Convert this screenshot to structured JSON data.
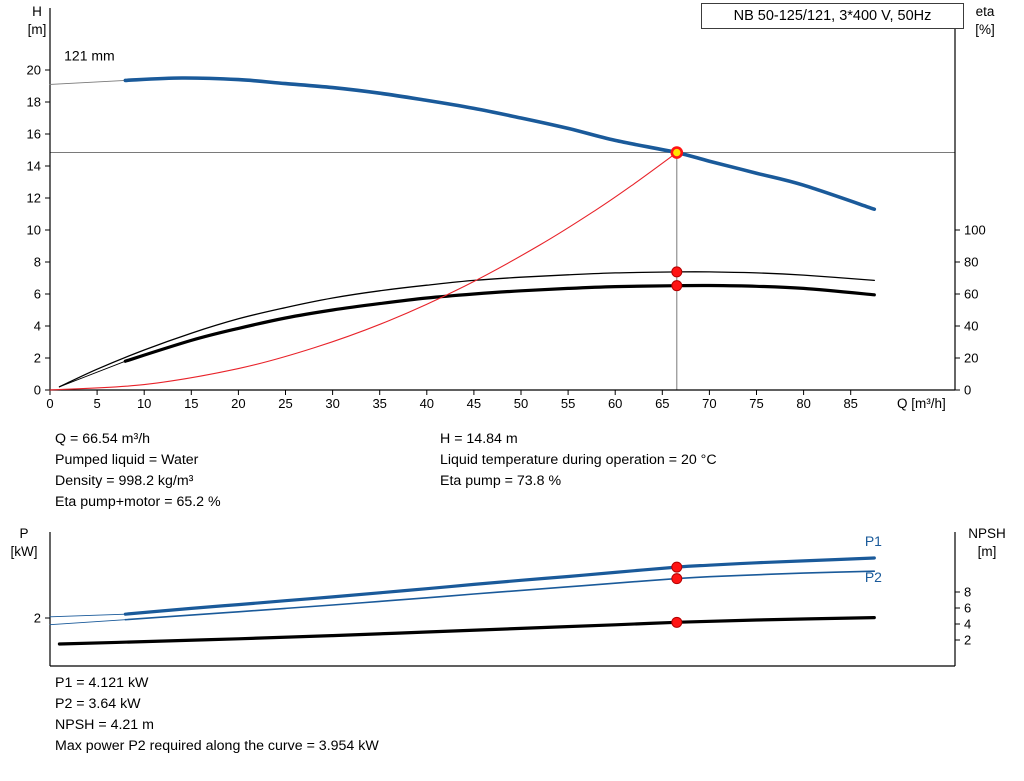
{
  "header": {
    "model": "NB 50-125/121, 3*400 V, 50Hz"
  },
  "info": {
    "top_left": [
      "Q = 66.54 m³/h",
      "Pumped liquid = Water",
      "Density = 998.2 kg/m³",
      "Eta pump+motor = 65.2 %"
    ],
    "top_right": [
      "H = 14.84 m",
      "Liquid temperature during operation = 20 °C",
      "Eta pump = 73.8 %"
    ],
    "bottom": [
      "P1 = 4.121 kW",
      "P2 = 3.64 kW",
      "NPSH = 4.21 m",
      "Max power P2 required along the curve = 3.954 kW"
    ]
  },
  "colors": {
    "curve_blue": "#1a5a9a",
    "curve_black": "#000000",
    "curve_red": "#e8232a",
    "marker_red": "#ff1414",
    "marker_red_edge": "#b40000",
    "marker_yellow": "#ffe400",
    "guide_gray": "#7a7a7a",
    "axis_black": "#000000"
  },
  "chart_data": [
    {
      "type": "line",
      "name": "qh-eta-chart",
      "x_axis": {
        "label": "Q [m³/h]",
        "min": 0,
        "max": 96,
        "ticks": [
          0,
          5,
          10,
          15,
          20,
          25,
          30,
          35,
          40,
          45,
          50,
          55,
          60,
          65,
          70,
          75,
          80,
          85
        ]
      },
      "y_left": {
        "label_lines": [
          "H",
          "[m]"
        ],
        "min": 0,
        "max": 20,
        "ticks": [
          0,
          2,
          4,
          6,
          8,
          10,
          12,
          14,
          16,
          18,
          20
        ]
      },
      "y_right": {
        "label_lines": [
          "eta",
          "[%]"
        ],
        "min": 0,
        "max": 100,
        "ticks": [
          0,
          20,
          40,
          60,
          80,
          100
        ]
      },
      "grid": false,
      "series": [
        {
          "name": "head-curve-leader",
          "axis": "left",
          "color_key": "guide_gray",
          "width": 0.9,
          "points": [
            [
              0,
              19.1
            ],
            [
              8,
              19.35
            ]
          ]
        },
        {
          "name": "head-curve",
          "label": "121 mm",
          "axis": "left",
          "color_key": "curve_blue",
          "width": 3.6,
          "points": [
            [
              8,
              19.35
            ],
            [
              14,
              19.5
            ],
            [
              20,
              19.4
            ],
            [
              25,
              19.15
            ],
            [
              30,
              18.9
            ],
            [
              35,
              18.55
            ],
            [
              40,
              18.1
            ],
            [
              45,
              17.6
            ],
            [
              50,
              17.0
            ],
            [
              55,
              16.35
            ],
            [
              60,
              15.6
            ],
            [
              66.54,
              14.84
            ],
            [
              70,
              14.3
            ],
            [
              75,
              13.55
            ],
            [
              80,
              12.8
            ],
            [
              87.5,
              11.3
            ]
          ]
        },
        {
          "name": "eta-pump-curve",
          "axis": "right",
          "color_key": "curve_black",
          "width": 1.3,
          "points": [
            [
              1,
              2
            ],
            [
              5,
              13
            ],
            [
              10,
              25
            ],
            [
              15,
              35.5
            ],
            [
              20,
              44.5
            ],
            [
              25,
              51.5
            ],
            [
              30,
              57.5
            ],
            [
              35,
              62
            ],
            [
              40,
              65.5
            ],
            [
              45,
              68.5
            ],
            [
              50,
              70.5
            ],
            [
              55,
              72
            ],
            [
              60,
              73.2
            ],
            [
              66.54,
              73.8
            ],
            [
              70,
              73.8
            ],
            [
              75,
              73.2
            ],
            [
              80,
              71.8
            ],
            [
              87.5,
              68.5
            ]
          ]
        },
        {
          "name": "eta-pump-motor-leader",
          "axis": "right",
          "color_key": "curve_black",
          "width": 0.9,
          "points": [
            [
              1,
              2
            ],
            [
              8,
              18
            ]
          ]
        },
        {
          "name": "eta-pump-motor-curve",
          "axis": "right",
          "color_key": "curve_black",
          "width": 3.2,
          "points": [
            [
              8,
              18
            ],
            [
              15,
              31
            ],
            [
              20,
              38.5
            ],
            [
              25,
              45
            ],
            [
              30,
              50
            ],
            [
              35,
              54
            ],
            [
              40,
              57.5
            ],
            [
              45,
              60
            ],
            [
              50,
              62
            ],
            [
              55,
              63.5
            ],
            [
              60,
              64.6
            ],
            [
              66.54,
              65.2
            ],
            [
              70,
              65.3
            ],
            [
              75,
              64.8
            ],
            [
              80,
              63.5
            ],
            [
              87.5,
              59.5
            ]
          ]
        },
        {
          "name": "system-curve",
          "axis": "left",
          "color_key": "curve_red",
          "width": 1.1,
          "points": [
            [
              0,
              0
            ],
            [
              10,
              0.34
            ],
            [
              20,
              1.34
            ],
            [
              28,
              2.63
            ],
            [
              36,
              4.34
            ],
            [
              44,
              6.49
            ],
            [
              52,
              9.06
            ],
            [
              58,
              11.27
            ],
            [
              62,
              12.88
            ],
            [
              66.54,
              14.84
            ]
          ]
        }
      ],
      "duty_lines": {
        "vertical_q": 66.54,
        "horizontal_value": 14.84,
        "axis": "left"
      },
      "markers": [
        {
          "name": "duty-point",
          "q": 66.54,
          "value": 14.84,
          "axis": "left",
          "style": "ring"
        },
        {
          "name": "eta-pump-point",
          "q": 66.54,
          "value": 73.8,
          "axis": "right",
          "style": "dot"
        },
        {
          "name": "eta-pump-motor-point",
          "q": 66.54,
          "value": 65.2,
          "axis": "right",
          "style": "dot"
        }
      ],
      "labels": [
        {
          "name": "impeller-diameter-label",
          "text": "121 mm",
          "q": 1.5,
          "value": 20.6,
          "axis": "left",
          "color_key": "axis_black",
          "size": 14
        }
      ]
    },
    {
      "type": "line",
      "name": "power-npsh-chart",
      "x_axis": {
        "label": "",
        "min": 0,
        "max": 96,
        "ticks": []
      },
      "y_left": {
        "label_lines": [
          "P",
          "[kW]"
        ],
        "min": 0,
        "max": 5.6,
        "ticks": [
          2
        ]
      },
      "y_right": {
        "label_lines": [
          "NPSH",
          "[m]"
        ],
        "min": 0,
        "max": 16,
        "ticks": [
          2,
          4,
          6,
          8
        ]
      },
      "grid": false,
      "series": [
        {
          "name": "p1-curve-leader",
          "axis": "left",
          "color_key": "curve_blue",
          "width": 0.9,
          "points": [
            [
              0,
              2.05
            ],
            [
              8,
              2.16
            ]
          ]
        },
        {
          "name": "p1-curve",
          "label": "P1",
          "axis": "left",
          "color_key": "curve_blue",
          "width": 3.2,
          "points": [
            [
              8,
              2.16
            ],
            [
              15,
              2.4
            ],
            [
              20,
              2.56
            ],
            [
              25,
              2.72
            ],
            [
              30,
              2.88
            ],
            [
              35,
              3.05
            ],
            [
              40,
              3.22
            ],
            [
              45,
              3.4
            ],
            [
              50,
              3.57
            ],
            [
              55,
              3.73
            ],
            [
              60,
              3.9
            ],
            [
              66.54,
              4.121
            ],
            [
              70,
              4.2
            ],
            [
              75,
              4.3
            ],
            [
              80,
              4.38
            ],
            [
              87.5,
              4.5
            ]
          ]
        },
        {
          "name": "p2-curve-leader",
          "axis": "left",
          "color_key": "curve_blue",
          "width": 0.9,
          "points": [
            [
              0,
              1.72
            ],
            [
              8,
              1.93
            ]
          ]
        },
        {
          "name": "p2-curve",
          "label": "P2",
          "axis": "left",
          "color_key": "curve_blue",
          "width": 1.6,
          "points": [
            [
              8,
              1.93
            ],
            [
              15,
              2.12
            ],
            [
              20,
              2.26
            ],
            [
              25,
              2.4
            ],
            [
              30,
              2.54
            ],
            [
              35,
              2.69
            ],
            [
              40,
              2.84
            ],
            [
              45,
              3.0
            ],
            [
              50,
              3.15
            ],
            [
              55,
              3.3
            ],
            [
              60,
              3.45
            ],
            [
              66.54,
              3.64
            ],
            [
              70,
              3.72
            ],
            [
              75,
              3.8
            ],
            [
              80,
              3.87
            ],
            [
              87.5,
              3.95
            ]
          ]
        },
        {
          "name": "npsh-curve",
          "axis": "right",
          "color_key": "curve_black",
          "width": 3.2,
          "points": [
            [
              1,
              1.5
            ],
            [
              10,
              1.8
            ],
            [
              20,
              2.15
            ],
            [
              30,
              2.55
            ],
            [
              40,
              3.0
            ],
            [
              50,
              3.45
            ],
            [
              60,
              3.9
            ],
            [
              66.54,
              4.21
            ],
            [
              75,
              4.5
            ],
            [
              87.5,
              4.8
            ]
          ]
        }
      ],
      "markers": [
        {
          "name": "p1-point",
          "q": 66.54,
          "value": 4.121,
          "axis": "left",
          "style": "dot"
        },
        {
          "name": "p2-point",
          "q": 66.54,
          "value": 3.64,
          "axis": "left",
          "style": "dot"
        },
        {
          "name": "npsh-point",
          "q": 66.54,
          "value": 4.21,
          "axis": "right",
          "style": "dot"
        }
      ],
      "labels": [
        {
          "name": "p1-curve-label",
          "text": "P1",
          "q": 86.5,
          "value": 5.0,
          "axis": "left",
          "color_key": "curve_blue",
          "size": 14
        },
        {
          "name": "p2-curve-label",
          "text": "P2",
          "q": 86.5,
          "value": 3.5,
          "axis": "left",
          "color_key": "curve_blue",
          "size": 14
        }
      ]
    }
  ]
}
